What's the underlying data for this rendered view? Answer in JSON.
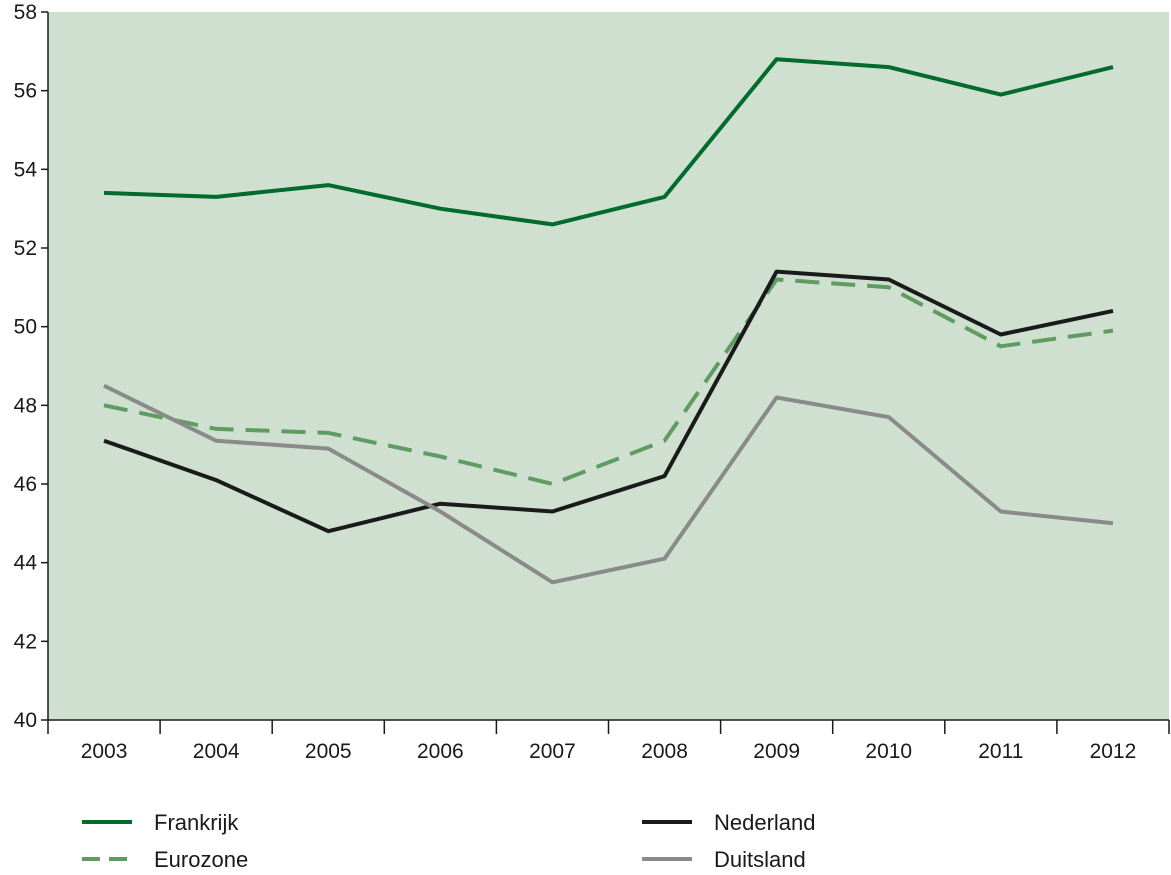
{
  "chart_data": {
    "type": "line",
    "title": "",
    "xlabel": "",
    "ylabel": "",
    "categories": [
      "2003",
      "2004",
      "2005",
      "2006",
      "2007",
      "2008",
      "2009",
      "2010",
      "2011",
      "2012"
    ],
    "ylim": [
      40,
      58
    ],
    "yticks": [
      40,
      42,
      44,
      46,
      48,
      50,
      52,
      54,
      56,
      58
    ],
    "yticklabels": [
      "40",
      "42",
      "44",
      "46",
      "48",
      "50",
      "52",
      "54",
      "56",
      "58"
    ],
    "grid": false,
    "background": "#cfe0d1",
    "legend_position": "bottom",
    "series": [
      {
        "name": "Frankrijk",
        "color": "#006b2d",
        "dash": "solid",
        "values": [
          53.4,
          53.3,
          53.6,
          53.0,
          52.6,
          53.3,
          56.8,
          56.6,
          55.9,
          56.6
        ]
      },
      {
        "name": "Eurozone",
        "color": "#5f9c62",
        "dash": "dashed",
        "values": [
          48.0,
          47.4,
          47.3,
          46.7,
          46.0,
          47.1,
          51.2,
          51.0,
          49.5,
          49.9
        ]
      },
      {
        "name": "Nederland",
        "color": "#1a1a1a",
        "dash": "solid",
        "values": [
          47.1,
          46.1,
          44.8,
          45.5,
          45.3,
          46.2,
          51.4,
          51.2,
          49.8,
          50.4
        ]
      },
      {
        "name": "Duitsland",
        "color": "#8a8a8a",
        "dash": "solid",
        "values": [
          48.5,
          47.1,
          46.9,
          45.3,
          43.5,
          44.1,
          48.2,
          47.7,
          45.3,
          45.0
        ]
      }
    ]
  }
}
